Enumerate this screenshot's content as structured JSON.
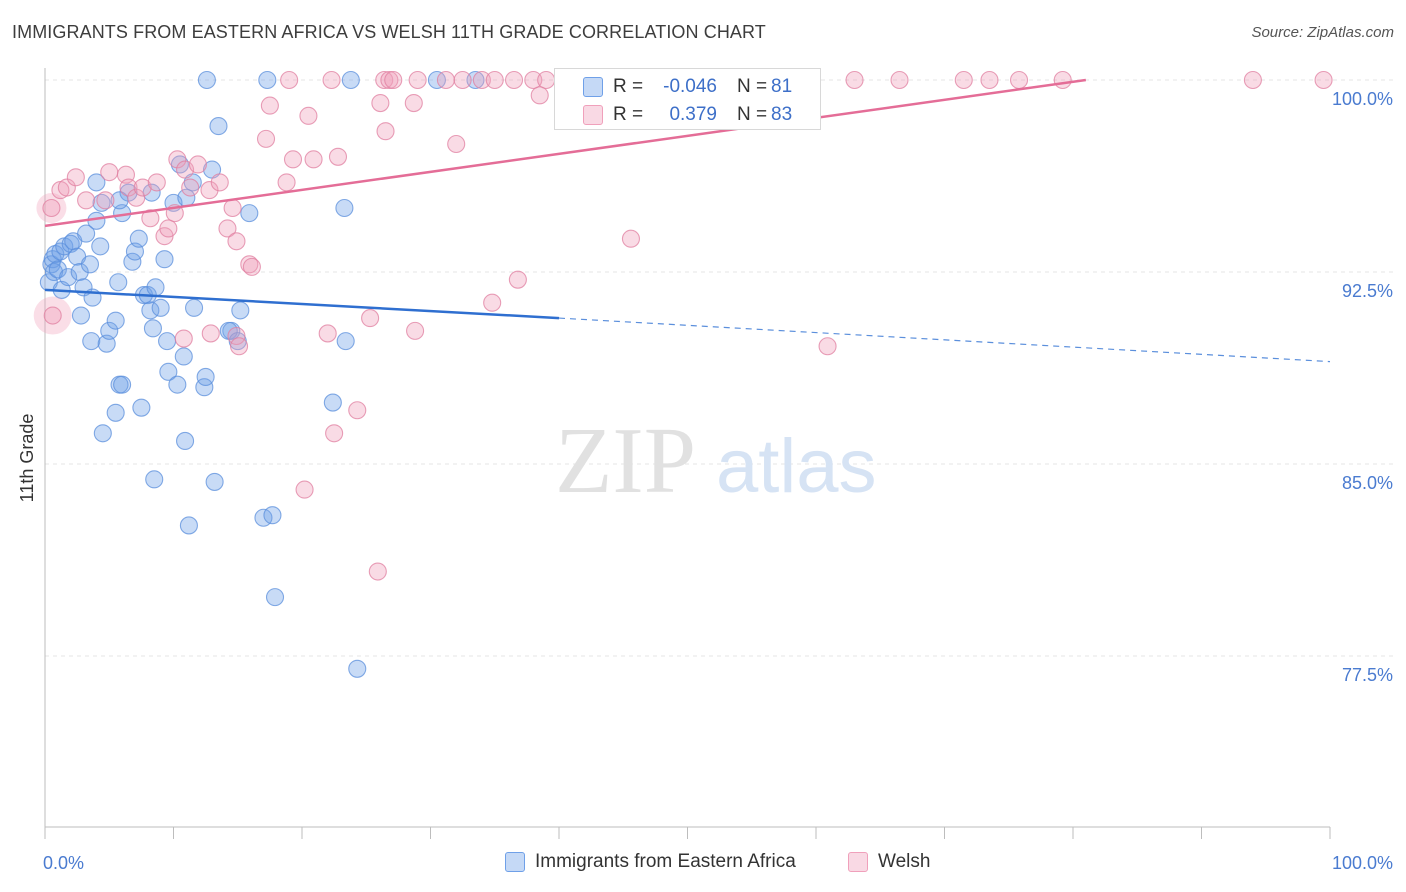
{
  "title": "IMMIGRANTS FROM EASTERN AFRICA VS WELSH 11TH GRADE CORRELATION CHART",
  "source": "Source: ZipAtlas.com",
  "watermark": {
    "zip": "ZIP",
    "atlas": "atlas"
  },
  "stats_legend": {
    "rows": [
      {
        "r_label": "R =",
        "r_value": "-0.046",
        "n_label": "N =",
        "n_value": "81",
        "color": "#6fa0e8"
      },
      {
        "r_label": "R =",
        "r_value": "0.379",
        "n_label": "N =",
        "n_value": "83",
        "color": "#f0a0bb"
      }
    ]
  },
  "chart_data": {
    "type": "scatter",
    "title": "IMMIGRANTS FROM EASTERN AFRICA VS WELSH 11TH GRADE CORRELATION CHART",
    "xlabel": "",
    "ylabel": "11th Grade",
    "xlim": [
      0,
      100
    ],
    "ylim": [
      72.0,
      101.8
    ],
    "x_tick_labels": [
      "0.0%",
      "100.0%"
    ],
    "y_ticks": [
      77.5,
      85.0,
      92.5,
      100.0
    ],
    "y_tick_labels": [
      "77.5%",
      "85.0%",
      "92.5%",
      "100.0%"
    ],
    "grid": true,
    "legend_placement": "bottom",
    "colors": {
      "series_a": "#5b8fdc",
      "series_b": "#e67fa4",
      "tick_text": "#4a7bd0"
    },
    "series": [
      {
        "name": "Immigrants from Eastern Africa",
        "color": "#6fa0e8",
        "trend": {
          "x": [
            0,
            40
          ],
          "y": [
            91.8,
            90.7
          ],
          "dashed_to": [
            100,
            89.0
          ]
        },
        "points": [
          [
            0.3,
            92.1
          ],
          [
            0.5,
            92.8
          ],
          [
            0.6,
            93.0
          ],
          [
            0.7,
            92.5
          ],
          [
            0.8,
            93.2
          ],
          [
            1.0,
            92.6
          ],
          [
            1.2,
            93.3
          ],
          [
            1.5,
            93.5
          ],
          [
            1.3,
            91.8
          ],
          [
            1.8,
            92.3
          ],
          [
            2.0,
            93.6
          ],
          [
            2.2,
            93.7
          ],
          [
            2.5,
            93.1
          ],
          [
            2.7,
            92.5
          ],
          [
            3.0,
            91.9
          ],
          [
            3.2,
            94.0
          ],
          [
            3.5,
            92.8
          ],
          [
            3.7,
            91.5
          ],
          [
            4.0,
            94.5
          ],
          [
            4.3,
            93.5
          ],
          [
            2.8,
            90.8
          ],
          [
            3.6,
            89.8
          ],
          [
            4.8,
            89.7
          ],
          [
            5.0,
            90.2
          ],
          [
            5.5,
            90.6
          ],
          [
            6.0,
            94.8
          ],
          [
            6.5,
            95.6
          ],
          [
            5.7,
            92.1
          ],
          [
            6.8,
            92.9
          ],
          [
            7.0,
            93.3
          ],
          [
            7.3,
            93.8
          ],
          [
            7.7,
            91.6
          ],
          [
            8.0,
            91.6
          ],
          [
            8.2,
            91.0
          ],
          [
            8.6,
            91.9
          ],
          [
            9.0,
            91.1
          ],
          [
            9.3,
            93.0
          ],
          [
            9.5,
            89.8
          ],
          [
            8.4,
            90.3
          ],
          [
            4.0,
            96.0
          ],
          [
            4.4,
            95.2
          ],
          [
            5.8,
            95.3
          ],
          [
            8.3,
            95.6
          ],
          [
            10.0,
            95.2
          ],
          [
            10.5,
            96.7
          ],
          [
            11.5,
            96.0
          ],
          [
            11.6,
            91.1
          ],
          [
            10.8,
            89.2
          ],
          [
            9.6,
            88.6
          ],
          [
            10.3,
            88.1
          ],
          [
            5.8,
            88.1
          ],
          [
            6.0,
            88.1
          ],
          [
            7.5,
            87.2
          ],
          [
            5.5,
            87.0
          ],
          [
            4.5,
            86.2
          ],
          [
            10.9,
            85.9
          ],
          [
            8.5,
            84.4
          ],
          [
            11.2,
            82.6
          ],
          [
            13.2,
            84.3
          ],
          [
            13.5,
            98.2
          ],
          [
            13.0,
            96.5
          ],
          [
            15.2,
            91.0
          ],
          [
            14.5,
            90.2
          ],
          [
            14.3,
            90.2
          ],
          [
            15.0,
            89.8
          ],
          [
            12.4,
            88.0
          ],
          [
            12.5,
            88.4
          ],
          [
            15.9,
            94.8
          ],
          [
            17.0,
            82.9
          ],
          [
            17.7,
            83.0
          ],
          [
            17.9,
            79.8
          ],
          [
            22.4,
            87.4
          ],
          [
            23.4,
            89.8
          ],
          [
            23.3,
            95.0
          ],
          [
            24.3,
            77.0
          ],
          [
            12.6,
            100.0
          ],
          [
            17.3,
            100.0
          ],
          [
            23.8,
            100.0
          ],
          [
            30.5,
            100.0
          ],
          [
            33.5,
            100.0
          ],
          [
            11.0,
            95.4
          ]
        ]
      },
      {
        "name": "Welsh",
        "color": "#f0a0bb",
        "trend": {
          "x": [
            0,
            81
          ],
          "y": [
            94.3,
            100.0
          ]
        },
        "points": [
          [
            0.5,
            95.0
          ],
          [
            0.6,
            90.8
          ],
          [
            1.2,
            95.7
          ],
          [
            1.7,
            95.8
          ],
          [
            2.4,
            96.2
          ],
          [
            3.2,
            95.3
          ],
          [
            4.7,
            95.3
          ],
          [
            5.0,
            96.4
          ],
          [
            6.3,
            96.3
          ],
          [
            6.5,
            95.8
          ],
          [
            7.1,
            95.4
          ],
          [
            7.6,
            95.8
          ],
          [
            8.2,
            94.6
          ],
          [
            8.7,
            96.0
          ],
          [
            9.3,
            93.9
          ],
          [
            9.6,
            94.2
          ],
          [
            10.1,
            94.8
          ],
          [
            10.3,
            96.9
          ],
          [
            10.9,
            96.5
          ],
          [
            11.3,
            95.8
          ],
          [
            11.9,
            96.7
          ],
          [
            12.8,
            95.7
          ],
          [
            13.6,
            96.0
          ],
          [
            14.2,
            94.2
          ],
          [
            14.6,
            95.0
          ],
          [
            14.9,
            93.7
          ],
          [
            15.9,
            92.8
          ],
          [
            16.1,
            92.7
          ],
          [
            17.2,
            97.7
          ],
          [
            17.5,
            99.0
          ],
          [
            18.8,
            96.0
          ],
          [
            19.3,
            96.9
          ],
          [
            20.5,
            98.6
          ],
          [
            20.9,
            96.9
          ],
          [
            22.8,
            97.0
          ],
          [
            19.0,
            100.0
          ],
          [
            22.3,
            100.0
          ],
          [
            26.4,
            100.0
          ],
          [
            26.1,
            99.1
          ],
          [
            28.7,
            99.1
          ],
          [
            26.8,
            100.0
          ],
          [
            27.1,
            100.0
          ],
          [
            29.0,
            100.0
          ],
          [
            31.2,
            100.0
          ],
          [
            32.5,
            100.0
          ],
          [
            34.0,
            100.0
          ],
          [
            35.0,
            100.0
          ],
          [
            36.5,
            100.0
          ],
          [
            38.0,
            100.0
          ],
          [
            39.0,
            100.0
          ],
          [
            41.0,
            100.0
          ],
          [
            38.5,
            99.4
          ],
          [
            42.5,
            100.0
          ],
          [
            46.5,
            100.0
          ],
          [
            47.5,
            100.0
          ],
          [
            52.0,
            100.0
          ],
          [
            55.5,
            100.0
          ],
          [
            58.5,
            100.0
          ],
          [
            63.0,
            100.0
          ],
          [
            66.5,
            100.0
          ],
          [
            71.5,
            100.0
          ],
          [
            73.5,
            100.0
          ],
          [
            75.8,
            100.0
          ],
          [
            79.2,
            100.0
          ],
          [
            94.0,
            100.0
          ],
          [
            99.5,
            100.0
          ],
          [
            26.5,
            98.0
          ],
          [
            32.0,
            97.5
          ],
          [
            36.8,
            92.2
          ],
          [
            45.6,
            93.8
          ],
          [
            28.8,
            90.2
          ],
          [
            34.8,
            91.3
          ],
          [
            22.0,
            90.1
          ],
          [
            25.3,
            90.7
          ],
          [
            22.5,
            86.2
          ],
          [
            24.3,
            87.1
          ],
          [
            20.2,
            84.0
          ],
          [
            25.9,
            80.8
          ],
          [
            14.9,
            90.0
          ],
          [
            15.1,
            89.6
          ],
          [
            12.9,
            90.1
          ],
          [
            10.8,
            89.9
          ],
          [
            60.9,
            89.6
          ]
        ]
      }
    ]
  },
  "bottom_legend": [
    {
      "label": "Immigrants from Eastern Africa",
      "color": "#6fa0e8"
    },
    {
      "label": "Welsh",
      "color": "#f0a0bb"
    }
  ]
}
